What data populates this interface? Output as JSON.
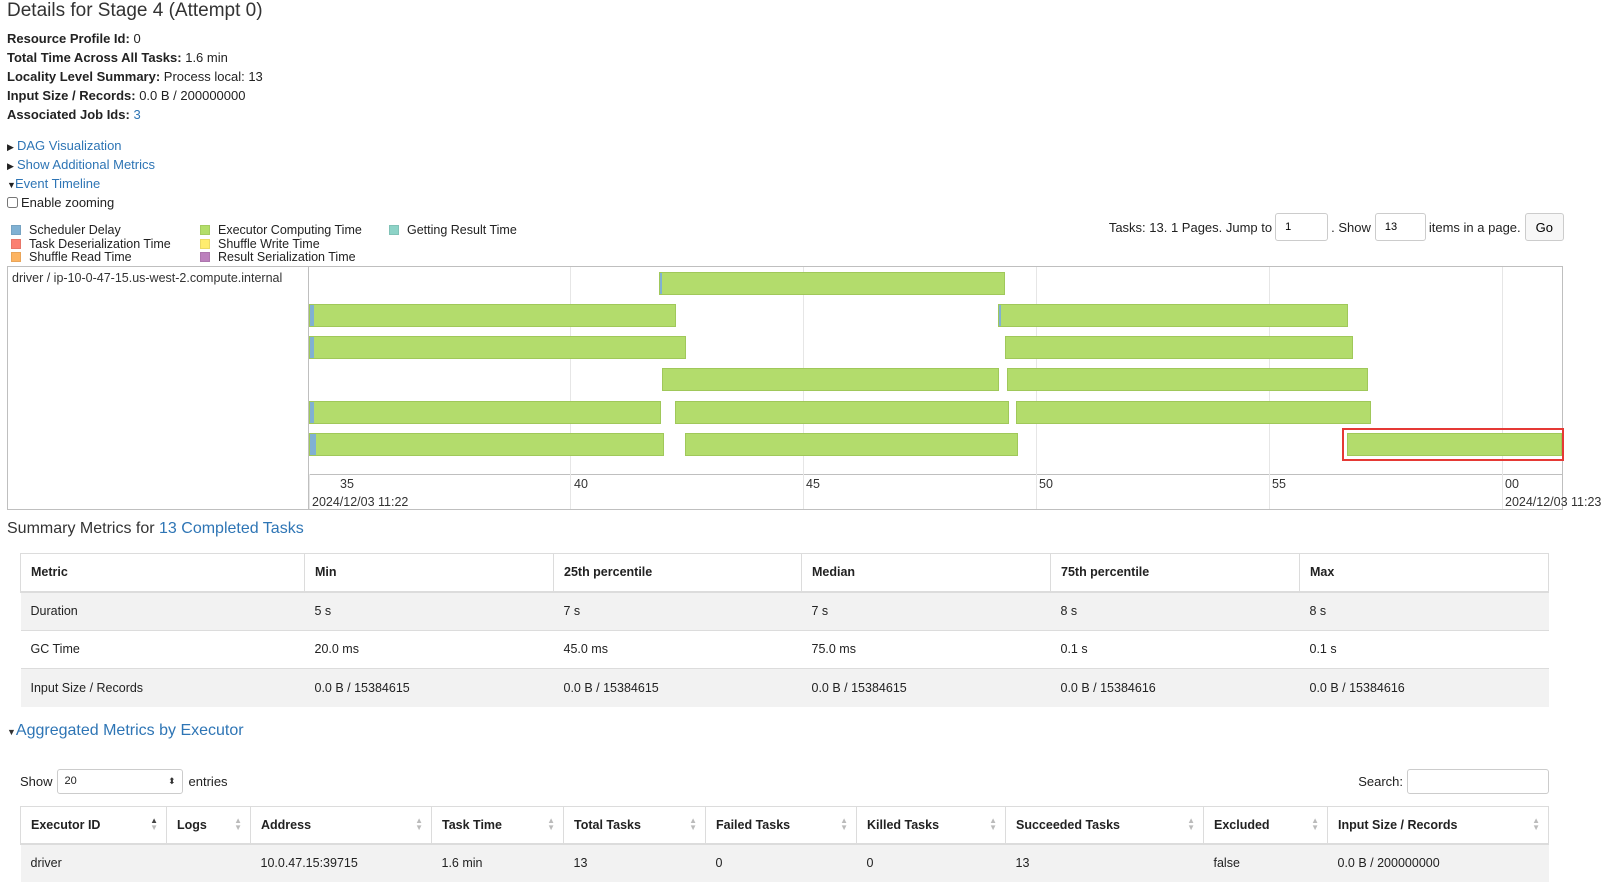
{
  "title": "Details for Stage 4 (Attempt 0)",
  "summary": [
    {
      "label": "Resource Profile Id:",
      "value": "0"
    },
    {
      "label": "Total Time Across All Tasks:",
      "value": "1.6 min"
    },
    {
      "label": "Locality Level Summary:",
      "value": "Process local: 13"
    },
    {
      "label": "Input Size / Records:",
      "value": "0.0 B / 200000000"
    },
    {
      "label": "Associated Job Ids:",
      "value": "3"
    }
  ],
  "toggles": {
    "dag": "DAG Visualization",
    "additional": "Show Additional Metrics",
    "event_timeline": "Event Timeline"
  },
  "enable_zooming": "Enable zooming",
  "legend": [
    {
      "label": "Scheduler Delay",
      "color": "#80b1d3"
    },
    {
      "label": "Task Deserialization Time",
      "color": "#fb8072"
    },
    {
      "label": "Shuffle Read Time",
      "color": "#fdb462"
    },
    {
      "label": "Executor Computing Time",
      "color": "#b3de69"
    },
    {
      "label": "Shuffle Write Time",
      "color": "#ffed6f"
    },
    {
      "label": "Result Serialization Time",
      "color": "#bc80bd"
    },
    {
      "label": "Getting Result Time",
      "color": "#8dd3c7"
    }
  ],
  "pager": {
    "prefix": "Tasks: 13. 1 Pages. Jump to",
    "page_value": "1",
    "show_label": ". Show",
    "page_size": "13",
    "suffix": "items in a page.",
    "go": "Go"
  },
  "timeline": {
    "group_label": "driver / ip-10-0-47-15.us-west-2.compute.internal",
    "ticks": [
      "35",
      "40",
      "45",
      "50",
      "55",
      "00"
    ],
    "date_left": "2024/12/03 11:22",
    "date_right": "2024/12/03 11:23"
  },
  "metrics_title_prefix": "Summary Metrics for ",
  "metrics_title_link": "13 Completed Tasks",
  "metrics": {
    "headers": [
      "Metric",
      "Min",
      "25th percentile",
      "Median",
      "75th percentile",
      "Max"
    ],
    "rows": [
      [
        "Duration",
        "5 s",
        "7 s",
        "7 s",
        "8 s",
        "8 s"
      ],
      [
        "GC Time",
        "20.0 ms",
        "45.0 ms",
        "75.0 ms",
        "0.1 s",
        "0.1 s"
      ],
      [
        "Input Size / Records",
        "0.0 B / 15384615",
        "0.0 B / 15384615",
        "0.0 B / 15384615",
        "0.0 B / 15384616",
        "0.0 B / 15384616"
      ]
    ]
  },
  "agg_title": "Aggregated Metrics by Executor",
  "entries": {
    "show": "Show",
    "value": "20",
    "suffix": "entries"
  },
  "search_label": "Search:",
  "executors": {
    "headers": [
      "Executor ID",
      "Logs",
      "Address",
      "Task Time",
      "Total Tasks",
      "Failed Tasks",
      "Killed Tasks",
      "Succeeded Tasks",
      "Excluded",
      "Input Size / Records"
    ],
    "rows": [
      [
        "driver",
        "",
        "10.0.47.15:39715",
        "1.6 min",
        "13",
        "0",
        "0",
        "13",
        "false",
        "0.0 B / 200000000"
      ]
    ]
  }
}
